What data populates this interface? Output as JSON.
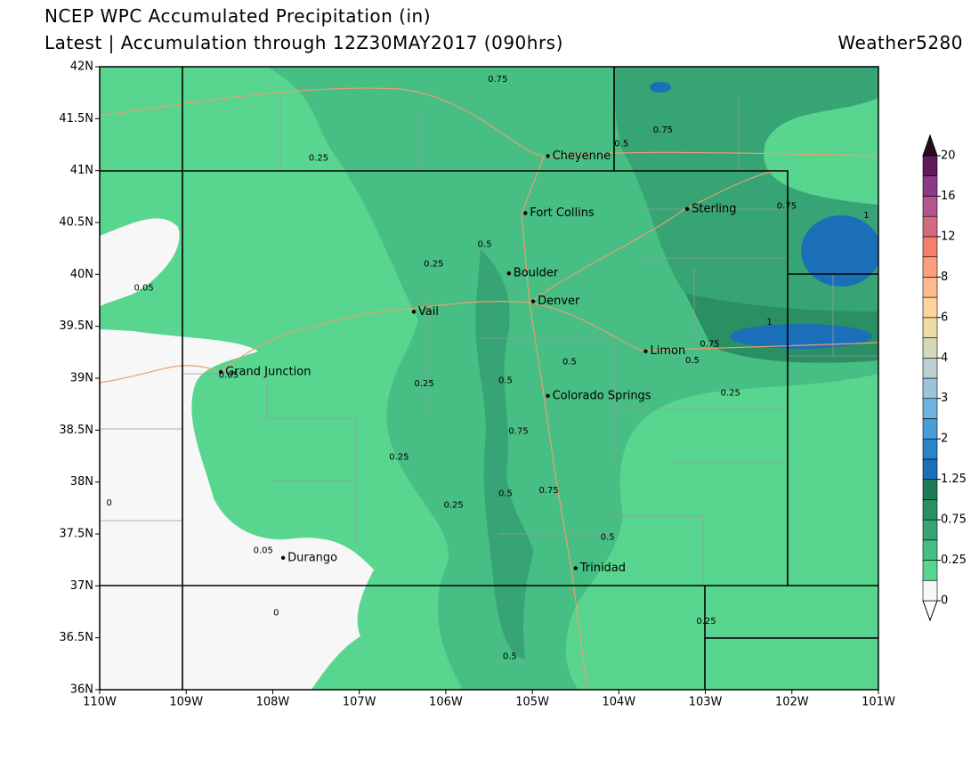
{
  "header": {
    "title": "NCEP WPC Accumulated Precipitation (in)",
    "subtitle": "Latest | Accumulation through 12Z30MAY2017 (090hrs)",
    "brand": "Weather5280"
  },
  "map": {
    "type": "contour-map",
    "xlim": [
      -110,
      -101
    ],
    "ylim": [
      36,
      42
    ],
    "xticks": [
      {
        "value": -110,
        "label": "110W"
      },
      {
        "value": -109,
        "label": "109W"
      },
      {
        "value": -108,
        "label": "108W"
      },
      {
        "value": -107,
        "label": "107W"
      },
      {
        "value": -106,
        "label": "106W"
      },
      {
        "value": -105,
        "label": "105W"
      },
      {
        "value": -104,
        "label": "104W"
      },
      {
        "value": -103,
        "label": "103W"
      },
      {
        "value": -102,
        "label": "102W"
      },
      {
        "value": -101,
        "label": "101W"
      }
    ],
    "yticks": [
      {
        "value": 42,
        "label": "42N"
      },
      {
        "value": 41.5,
        "label": "41.5N"
      },
      {
        "value": 41,
        "label": "41N"
      },
      {
        "value": 40.5,
        "label": "40.5N"
      },
      {
        "value": 40,
        "label": "40N"
      },
      {
        "value": 39.5,
        "label": "39.5N"
      },
      {
        "value": 39,
        "label": "39N"
      },
      {
        "value": 38.5,
        "label": "38.5N"
      },
      {
        "value": 38,
        "label": "38N"
      },
      {
        "value": 37.5,
        "label": "37.5N"
      },
      {
        "value": 37,
        "label": "37N"
      },
      {
        "value": 36.5,
        "label": "36.5N"
      },
      {
        "value": 36,
        "label": "36N"
      }
    ],
    "cities": [
      {
        "name": "Cheyenne",
        "lon": -104.82,
        "lat": 41.14
      },
      {
        "name": "Fort Collins",
        "lon": -105.08,
        "lat": 40.59
      },
      {
        "name": "Sterling",
        "lon": -103.21,
        "lat": 40.63
      },
      {
        "name": "Boulder",
        "lon": -105.27,
        "lat": 40.01
      },
      {
        "name": "Denver",
        "lon": -104.99,
        "lat": 39.74
      },
      {
        "name": "Vail",
        "lon": -106.37,
        "lat": 39.64
      },
      {
        "name": "Limon",
        "lon": -103.69,
        "lat": 39.26
      },
      {
        "name": "Grand Junction",
        "lon": -108.6,
        "lat": 39.06
      },
      {
        "name": "Colorado Springs",
        "lon": -104.82,
        "lat": 38.83
      },
      {
        "name": "Durango",
        "lon": -107.88,
        "lat": 37.27
      },
      {
        "name": "Trinidad",
        "lon": -104.5,
        "lat": 37.17
      }
    ],
    "contour_labels": [
      {
        "value": 0.75,
        "lon": -105.4,
        "lat": 41.88
      },
      {
        "value": 0.5,
        "lon": -103.97,
        "lat": 41.26
      },
      {
        "value": 0.75,
        "lon": -103.49,
        "lat": 41.39
      },
      {
        "value": 0.25,
        "lon": -107.47,
        "lat": 41.12
      },
      {
        "value": 0.75,
        "lon": -102.06,
        "lat": 40.66
      },
      {
        "value": 1,
        "lon": -101.14,
        "lat": 40.57
      },
      {
        "value": 0.5,
        "lon": -105.55,
        "lat": 40.29
      },
      {
        "value": 0.25,
        "lon": -106.14,
        "lat": 40.1
      },
      {
        "value": 0.05,
        "lon": -109.49,
        "lat": 39.87
      },
      {
        "value": 1,
        "lon": -102.26,
        "lat": 39.54
      },
      {
        "value": 0.75,
        "lon": -102.95,
        "lat": 39.33
      },
      {
        "value": 0.5,
        "lon": -103.15,
        "lat": 39.17
      },
      {
        "value": 0.5,
        "lon": -104.57,
        "lat": 39.16
      },
      {
        "value": 0.05,
        "lon": -108.51,
        "lat": 39.03
      },
      {
        "value": 0.25,
        "lon": -106.25,
        "lat": 38.95
      },
      {
        "value": 0.5,
        "lon": -105.31,
        "lat": 38.98
      },
      {
        "value": 0.25,
        "lon": -102.71,
        "lat": 38.86
      },
      {
        "value": 0.75,
        "lon": -105.16,
        "lat": 38.49
      },
      {
        "value": 0.25,
        "lon": -106.54,
        "lat": 38.24
      },
      {
        "value": 0.5,
        "lon": -105.31,
        "lat": 37.89
      },
      {
        "value": 0.75,
        "lon": -104.81,
        "lat": 37.92
      },
      {
        "value": 0.25,
        "lon": -105.91,
        "lat": 37.78
      },
      {
        "value": 0,
        "lon": -109.89,
        "lat": 37.8
      },
      {
        "value": 0.5,
        "lon": -104.13,
        "lat": 37.47
      },
      {
        "value": 0.05,
        "lon": -108.11,
        "lat": 37.34
      },
      {
        "value": 0,
        "lon": -107.96,
        "lat": 36.74
      },
      {
        "value": 0.25,
        "lon": -102.99,
        "lat": 36.66
      },
      {
        "value": 0.5,
        "lon": -105.26,
        "lat": 36.32
      }
    ],
    "colorbar": {
      "levels": [
        0,
        0.25,
        0.75,
        1.25,
        2,
        3,
        4,
        6,
        8,
        12,
        16,
        20
      ],
      "colors": [
        "#f7f7f7",
        "#58d690",
        "#47be83",
        "#36a474",
        "#2b8f64",
        "#1f7a55",
        "#1a6fb8",
        "#2b84c8",
        "#4a9bd6",
        "#70b2df",
        "#99c4dc",
        "#bccfd0",
        "#d6d8bc",
        "#eedca6",
        "#fdd49a",
        "#fdbb8c",
        "#fc9f7c",
        "#f3806e",
        "#d36b80",
        "#b3568e",
        "#8c3a87",
        "#5f1a5c"
      ],
      "top_color": "#2a0a1e",
      "bottom_color": "#ffffff"
    }
  }
}
